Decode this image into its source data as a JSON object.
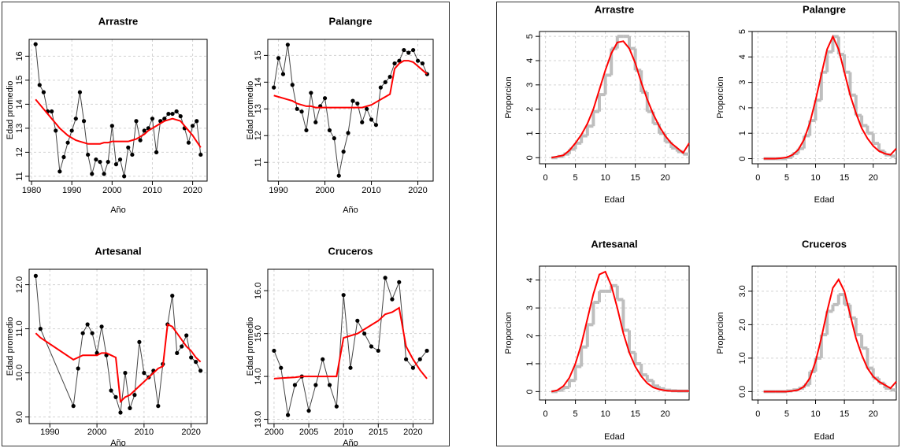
{
  "chart_data": [
    {
      "type": "line",
      "title": "Arrastre",
      "xlabel": "Año",
      "ylabel": "Edad promedio",
      "grid": true,
      "x": [
        1981,
        1982,
        1983,
        1984,
        1985,
        1986,
        1987,
        1988,
        1989,
        1990,
        1991,
        1992,
        1993,
        1994,
        1995,
        1996,
        1997,
        1998,
        1999,
        2000,
        2001,
        2002,
        2003,
        2004,
        2005,
        2006,
        2007,
        2008,
        2009,
        2010,
        2011,
        2012,
        2013,
        2014,
        2015,
        2016,
        2017,
        2018,
        2019,
        2020,
        2021,
        2022
      ],
      "series": [
        {
          "color": "#000000",
          "marker": true,
          "values": [
            16.5,
            14.8,
            14.5,
            13.7,
            13.7,
            12.9,
            11.2,
            11.8,
            12.4,
            12.9,
            13.4,
            14.5,
            13.3,
            11.9,
            11.1,
            11.7,
            11.6,
            11.1,
            11.6,
            13.1,
            11.5,
            11.7,
            11.0,
            12.2,
            11.9,
            13.3,
            12.5,
            12.9,
            13.0,
            13.4,
            12.0,
            13.3,
            13.4,
            13.6,
            13.6,
            13.7,
            13.5,
            13.0,
            12.4,
            13.1,
            13.3,
            11.9
          ]
        },
        {
          "color": "#ff0000",
          "values": [
            14.2,
            14.0,
            13.8,
            13.6,
            13.4,
            13.2,
            13.0,
            12.85,
            12.7,
            12.6,
            12.5,
            12.45,
            12.4,
            12.35,
            12.35,
            12.35,
            12.35,
            12.4,
            12.4,
            12.45,
            12.45,
            12.45,
            12.45,
            12.45,
            12.5,
            12.55,
            12.65,
            12.75,
            12.9,
            13.0,
            13.1,
            13.2,
            13.3,
            13.35,
            13.4,
            13.35,
            13.3,
            13.1,
            12.9,
            12.7,
            12.45,
            12.2
          ]
        }
      ],
      "xlim": [
        1979.4,
        2023.6
      ],
      "ylim": [
        10.8,
        16.7
      ],
      "xticks": [
        1980,
        1990,
        2000,
        2010,
        2020
      ],
      "yticks": [
        11,
        12,
        13,
        14,
        15,
        16
      ]
    },
    {
      "type": "line",
      "title": "Palangre",
      "xlabel": "Año",
      "ylabel": "Edad promedio",
      "grid": true,
      "x": [
        1989,
        1990,
        1991,
        1992,
        1993,
        1994,
        1995,
        1996,
        1997,
        1998,
        1999,
        2000,
        2001,
        2002,
        2003,
        2004,
        2005,
        2006,
        2007,
        2008,
        2009,
        2010,
        2011,
        2012,
        2013,
        2014,
        2015,
        2016,
        2017,
        2018,
        2019,
        2020,
        2021,
        2022
      ],
      "series": [
        {
          "color": "#000000",
          "marker": true,
          "values": [
            13.8,
            14.9,
            14.3,
            15.4,
            13.9,
            13.0,
            12.9,
            12.2,
            13.6,
            12.5,
            13.1,
            13.4,
            12.2,
            11.9,
            10.5,
            11.4,
            12.1,
            13.3,
            13.2,
            12.5,
            13.0,
            12.6,
            12.4,
            13.8,
            14.0,
            14.2,
            14.7,
            14.8,
            15.2,
            15.1,
            15.2,
            14.8,
            14.7,
            14.3
          ]
        },
        {
          "color": "#ff0000",
          "values": [
            13.5,
            13.45,
            13.4,
            13.35,
            13.3,
            13.2,
            13.15,
            13.1,
            13.1,
            13.05,
            13.05,
            13.05,
            13.05,
            13.05,
            13.05,
            13.05,
            13.05,
            13.05,
            13.05,
            13.05,
            13.1,
            13.15,
            13.25,
            13.35,
            13.45,
            13.55,
            14.5,
            14.7,
            14.8,
            14.8,
            14.75,
            14.6,
            14.45,
            14.3
          ]
        }
      ],
      "xlim": [
        1987.7,
        2023.3
      ],
      "ylim": [
        10.3,
        15.6
      ],
      "xticks": [
        1990,
        2000,
        2010,
        2020
      ],
      "yticks": [
        11,
        12,
        13,
        14,
        15
      ]
    },
    {
      "type": "line",
      "title": "Artesanal",
      "xlabel": "Año",
      "ylabel": "Edad promedio",
      "grid": true,
      "x": [
        1987,
        1988,
        1995,
        1996,
        1997,
        1998,
        1999,
        2000,
        2001,
        2002,
        2003,
        2004,
        2005,
        2006,
        2007,
        2008,
        2009,
        2010,
        2011,
        2012,
        2013,
        2014,
        2015,
        2016,
        2017,
        2018,
        2019,
        2020,
        2021,
        2022
      ],
      "series": [
        {
          "color": "#000000",
          "marker": true,
          "values": [
            12.2,
            11.0,
            9.25,
            10.1,
            10.9,
            11.1,
            10.9,
            10.45,
            11.05,
            10.4,
            9.6,
            9.45,
            9.1,
            10.0,
            9.2,
            9.5,
            10.7,
            10.0,
            9.9,
            10.05,
            9.25,
            10.2,
            11.1,
            11.75,
            10.45,
            10.6,
            10.85,
            10.35,
            10.25,
            10.05
          ]
        },
        {
          "color": "#ff0000",
          "values": [
            10.9,
            10.8,
            10.3,
            10.35,
            10.4,
            10.4,
            10.4,
            10.4,
            10.45,
            10.45,
            10.4,
            10.35,
            9.35,
            9.45,
            9.5,
            9.6,
            9.7,
            9.8,
            9.9,
            10.0,
            10.1,
            10.15,
            11.1,
            11.05,
            10.9,
            10.75,
            10.6,
            10.5,
            10.35,
            10.25
          ]
        }
      ],
      "xlim": [
        1985.6,
        2023.4
      ],
      "ylim": [
        8.85,
        12.35
      ],
      "xticks": [
        1990,
        2000,
        2010,
        2020
      ],
      "yticks": [
        {
          "value": 9,
          "label": "9.0"
        },
        {
          "value": 10,
          "label": "10.0"
        },
        {
          "value": 11,
          "label": "11.0"
        },
        {
          "value": 12,
          "label": "12.0"
        }
      ]
    },
    {
      "type": "line",
      "title": "Cruceros",
      "xlabel": "Año",
      "ylabel": "Edad promedio",
      "grid": true,
      "x": [
        2000,
        2001,
        2002,
        2003,
        2004,
        2005,
        2006,
        2007,
        2008,
        2009,
        2010,
        2011,
        2012,
        2013,
        2014,
        2015,
        2016,
        2017,
        2018,
        2019,
        2020,
        2021,
        2022
      ],
      "series": [
        {
          "color": "#000000",
          "marker": true,
          "values": [
            14.6,
            14.2,
            13.1,
            13.8,
            14.0,
            13.2,
            13.8,
            14.4,
            13.8,
            13.3,
            15.9,
            14.2,
            15.3,
            15.0,
            14.7,
            14.6,
            16.3,
            15.8,
            16.2,
            14.4,
            14.2,
            14.4,
            14.6
          ]
        },
        {
          "color": "#ff0000",
          "values": [
            13.95,
            13.96,
            13.97,
            13.98,
            14.0,
            14.0,
            14.0,
            14.0,
            14.0,
            14.0,
            14.9,
            14.95,
            15.0,
            15.1,
            15.2,
            15.3,
            15.45,
            15.5,
            15.6,
            14.7,
            14.4,
            14.15,
            13.95
          ]
        }
      ],
      "xlim": [
        1999.1,
        2022.9
      ],
      "ylim": [
        12.9,
        16.5
      ],
      "xticks": [
        2000,
        2005,
        2010,
        2015,
        2020
      ],
      "yticks": [
        {
          "value": 13,
          "label": "13.0"
        },
        {
          "value": 14,
          "label": "14.0"
        },
        {
          "value": 15,
          "label": "15.0"
        },
        {
          "value": 16,
          "label": "16.0"
        }
      ]
    },
    {
      "type": "step",
      "title": "Arrastre",
      "xlabel": "Edad",
      "ylabel": "Proporcion",
      "grid": true,
      "x": [
        1,
        2,
        3,
        4,
        5,
        6,
        7,
        8,
        9,
        10,
        11,
        12,
        13,
        14,
        15,
        16,
        17,
        18,
        19,
        20,
        21,
        22,
        23,
        24
      ],
      "series": [
        {
          "color": "#bebebe",
          "step": true,
          "values": [
            0,
            0.05,
            0.15,
            0.35,
            0.6,
            0.9,
            1.3,
            1.9,
            2.6,
            3.4,
            4.5,
            5.0,
            5.0,
            4.5,
            3.6,
            2.7,
            1.9,
            1.4,
            1.0,
            0.65,
            0.4,
            0.25,
            0.15,
            null
          ]
        },
        {
          "color": "#ff0000",
          "values": [
            0,
            0.05,
            0.1,
            0.3,
            0.6,
            0.95,
            1.4,
            2.0,
            2.8,
            3.6,
            4.3,
            4.75,
            4.8,
            4.5,
            3.9,
            3.1,
            2.4,
            1.8,
            1.3,
            0.9,
            0.6,
            0.4,
            0.2,
            0.6
          ]
        }
      ],
      "xlim": [
        -1,
        24
      ],
      "ylim": [
        -0.25,
        5.2
      ],
      "xticks": [
        0,
        5,
        10,
        15,
        20
      ],
      "yticks": [
        0,
        1,
        2,
        3,
        4,
        5
      ]
    },
    {
      "type": "step",
      "title": "Palangre",
      "xlabel": "Edad",
      "ylabel": "Proporcion",
      "grid": true,
      "x": [
        1,
        2,
        3,
        4,
        5,
        6,
        7,
        8,
        9,
        10,
        11,
        12,
        13,
        14,
        15,
        16,
        17,
        18,
        19,
        20,
        21,
        22,
        23,
        24
      ],
      "series": [
        {
          "color": "#bebebe",
          "step": true,
          "values": [
            0,
            0,
            0,
            0,
            0.05,
            0.2,
            0.4,
            0.9,
            1.5,
            2.3,
            3.4,
            4.2,
            4.8,
            4.1,
            3.4,
            2.5,
            1.7,
            1.3,
            1.0,
            0.6,
            0.3,
            0.15,
            0.1,
            null
          ]
        },
        {
          "color": "#ff0000",
          "values": [
            0,
            0,
            0,
            0.02,
            0.05,
            0.15,
            0.35,
            0.75,
            1.4,
            2.3,
            3.3,
            4.3,
            4.8,
            4.3,
            3.4,
            2.5,
            1.8,
            1.2,
            0.8,
            0.5,
            0.3,
            0.2,
            0.15,
            0.4
          ]
        }
      ],
      "xlim": [
        -1,
        24
      ],
      "ylim": [
        -0.2,
        5
      ],
      "xticks": [
        0,
        5,
        10,
        15,
        20
      ],
      "yticks": [
        0,
        1,
        2,
        3,
        4,
        5
      ]
    },
    {
      "type": "step",
      "title": "Artesanal",
      "xlabel": "Edad",
      "ylabel": "Proporcion",
      "grid": true,
      "x": [
        1,
        2,
        3,
        4,
        5,
        6,
        7,
        8,
        9,
        10,
        11,
        12,
        13,
        14,
        15,
        16,
        17,
        18,
        19,
        20,
        21,
        22,
        23,
        24
      ],
      "series": [
        {
          "color": "#bebebe",
          "step": true,
          "values": [
            0,
            0.05,
            0.15,
            0.4,
            0.9,
            1.6,
            2.4,
            3.2,
            3.6,
            3.6,
            3.8,
            3.3,
            2.2,
            1.4,
            1.0,
            0.6,
            0.4,
            0.2,
            0.1,
            0.05,
            0.03,
            0.02,
            0.02,
            null
          ]
        },
        {
          "color": "#ff0000",
          "values": [
            0,
            0.05,
            0.2,
            0.5,
            1.0,
            1.7,
            2.6,
            3.5,
            4.2,
            4.3,
            3.8,
            3.0,
            2.1,
            1.4,
            0.9,
            0.55,
            0.3,
            0.15,
            0.08,
            0.04,
            0.02,
            0.02,
            0.02,
            0.02
          ]
        }
      ],
      "xlim": [
        -1,
        24
      ],
      "ylim": [
        -0.3,
        4.5
      ],
      "xticks": [
        0,
        5,
        10,
        15,
        20
      ],
      "yticks": [
        0,
        1,
        2,
        3,
        4
      ]
    },
    {
      "type": "step",
      "title": "Cruceros",
      "xlabel": "Edad",
      "ylabel": "Proporcion",
      "grid": true,
      "x": [
        1,
        2,
        3,
        4,
        5,
        6,
        7,
        8,
        9,
        10,
        11,
        12,
        13,
        14,
        15,
        16,
        17,
        18,
        19,
        20,
        21,
        22,
        23,
        24
      ],
      "series": [
        {
          "color": "#bebebe",
          "step": true,
          "values": [
            0,
            0,
            0,
            0,
            0.02,
            0.05,
            0.1,
            0.2,
            0.6,
            1.0,
            1.7,
            2.4,
            2.6,
            2.9,
            2.6,
            2.2,
            1.7,
            1.3,
            0.7,
            0.4,
            0.25,
            0.1,
            0.05,
            null
          ]
        },
        {
          "color": "#ff0000",
          "values": [
            0,
            0,
            0,
            0,
            0,
            0.02,
            0.05,
            0.15,
            0.4,
            0.9,
            1.6,
            2.4,
            3.1,
            3.35,
            3.0,
            2.3,
            1.6,
            1.1,
            0.7,
            0.45,
            0.3,
            0.2,
            0.1,
            0.3
          ]
        }
      ],
      "xlim": [
        -1,
        24
      ],
      "ylim": [
        -0.25,
        3.75
      ],
      "xticks": [
        0,
        5,
        10,
        15,
        20
      ],
      "yticks": [
        {
          "value": 0,
          "label": "0.0"
        },
        {
          "value": 1,
          "label": "1.0"
        },
        {
          "value": 2,
          "label": "2.0"
        },
        {
          "value": 3,
          "label": "3.0"
        }
      ]
    }
  ]
}
